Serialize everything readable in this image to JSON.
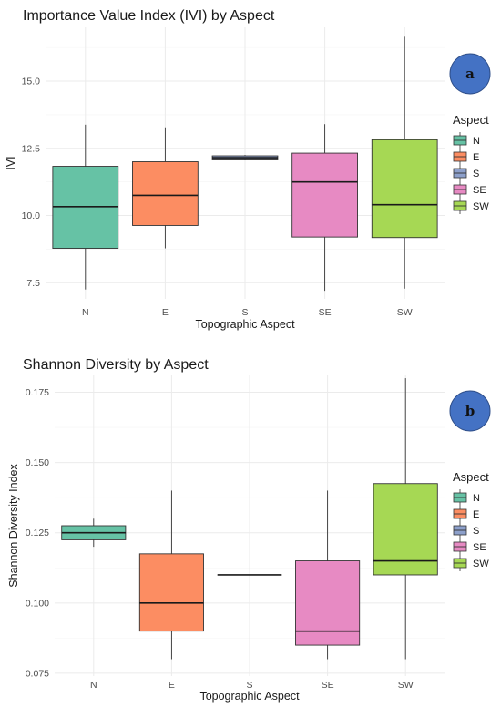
{
  "chart_data": [
    {
      "type": "box",
      "panel_label": "a",
      "title": "Importance Value Index (IVI) by Aspect",
      "xlabel": "Topographic Aspect",
      "ylabel": "IVI",
      "ylim": [
        6.9,
        17.0
      ],
      "yticks": [
        7.5,
        10.0,
        12.5,
        15.0
      ],
      "ytick_labels": [
        "7.5",
        "10.0",
        "12.5",
        "15.0"
      ],
      "categories": [
        "N",
        "E",
        "S",
        "SE",
        "SW"
      ],
      "boxes": [
        {
          "min": 7.25,
          "q1": 8.78,
          "median": 10.33,
          "q3": 11.83,
          "max": 13.38
        },
        {
          "min": 8.78,
          "q1": 9.63,
          "median": 10.75,
          "q3": 12.0,
          "max": 13.28
        },
        {
          "min": 12.05,
          "q1": 12.07,
          "median": 12.15,
          "q3": 12.22,
          "max": 12.25
        },
        {
          "min": 7.2,
          "q1": 9.2,
          "median": 11.25,
          "q3": 12.32,
          "max": 13.4
        },
        {
          "min": 7.28,
          "q1": 9.18,
          "median": 10.4,
          "q3": 12.82,
          "max": 16.65
        }
      ],
      "legend": {
        "title": "Aspect",
        "entries": [
          "N",
          "E",
          "S",
          "SE",
          "SW"
        ],
        "placement": "right"
      },
      "grid": true
    },
    {
      "type": "box",
      "panel_label": "b",
      "title": "Shannon Diversity by Aspect",
      "xlabel": "Topographic Aspect",
      "ylabel": "Shannon Diversity Index",
      "ylim": [
        0.074,
        0.181
      ],
      "yticks": [
        0.075,
        0.1,
        0.125,
        0.15,
        0.175
      ],
      "ytick_labels": [
        "0.075",
        "0.100",
        "0.125",
        "0.150",
        "0.175"
      ],
      "categories": [
        "N",
        "E",
        "S",
        "SE",
        "SW"
      ],
      "boxes": [
        {
          "min": 0.12,
          "q1": 0.1225,
          "median": 0.125,
          "q3": 0.1275,
          "max": 0.13
        },
        {
          "min": 0.08,
          "q1": 0.09,
          "median": 0.1,
          "q3": 0.1175,
          "max": 0.14
        },
        {
          "min": 0.11,
          "q1": 0.11,
          "median": 0.11,
          "q3": 0.11,
          "max": 0.11
        },
        {
          "min": 0.08,
          "q1": 0.085,
          "median": 0.09,
          "q3": 0.115,
          "max": 0.14
        },
        {
          "min": 0.08,
          "q1": 0.11,
          "median": 0.115,
          "q3": 0.1425,
          "max": 0.18
        }
      ],
      "legend": {
        "title": "Aspect",
        "entries": [
          "N",
          "E",
          "S",
          "SE",
          "SW"
        ],
        "placement": "right"
      },
      "grid": true
    }
  ],
  "colors": {
    "N": "#66c2a5",
    "E": "#fc8d62",
    "S": "#8da0cb",
    "SE": "#e78ac3",
    "SW": "#a6d854",
    "badge": "#4472c4",
    "grid": "#ebebeb"
  }
}
